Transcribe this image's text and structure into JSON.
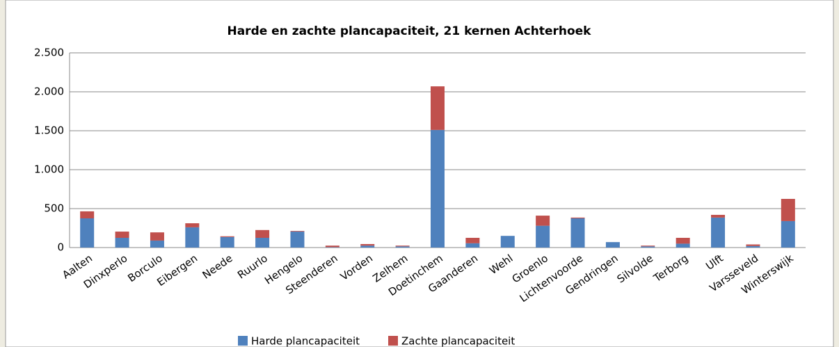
{
  "chart_data": {
    "type": "stacked-bar",
    "title": "Harde en zachte plancapaciteit, 21 kernen Achterhoek",
    "categories": [
      "Aalten",
      "Dinxperlo",
      "Borculo",
      "Eibergen",
      "Neede",
      "Ruurlo",
      "Hengelo",
      "Steenderen",
      "Vorden",
      "Zelhem",
      "Doetinchem",
      "Gaanderen",
      "Wehl",
      "Groenlo",
      "Lichtenvoorde",
      "Gendringen",
      "Silvolde",
      "Terborg",
      "Ulft",
      "Varsseveld",
      "Winterswijk"
    ],
    "series": [
      {
        "name": "Harde plancapaciteit",
        "color": "#4f81bd",
        "values": [
          375,
          125,
          90,
          260,
          135,
          125,
          205,
          5,
          25,
          15,
          1510,
          55,
          150,
          280,
          375,
          70,
          15,
          50,
          385,
          20,
          340
        ]
      },
      {
        "name": "Zachte plancapaciteit",
        "color": "#c0504d",
        "values": [
          90,
          80,
          105,
          52,
          10,
          100,
          8,
          20,
          20,
          10,
          560,
          70,
          0,
          130,
          10,
          0,
          10,
          75,
          35,
          20,
          285
        ]
      }
    ],
    "ylim": [
      0,
      2500
    ],
    "yticks": [
      0,
      500,
      {
        "value": 1000,
        "label": "1.000"
      },
      {
        "value": 1500,
        "label": "1.500"
      },
      {
        "value": 2000,
        "label": "2.000"
      },
      {
        "value": 2500,
        "label": "2.500"
      }
    ],
    "grid": true
  }
}
